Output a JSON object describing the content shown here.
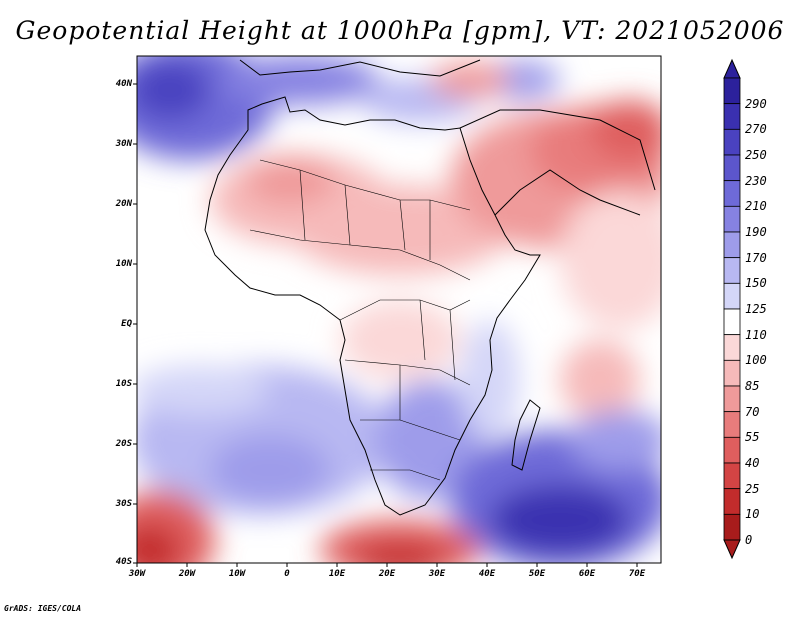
{
  "title": "Geopotential Height at 1000hPa [gpm], VT: 2021052006",
  "credit": "GrADS: IGES/COLA",
  "map": {
    "projection": "lat-lon",
    "variable": "Geopotential Height at 1000hPa",
    "units": "gpm",
    "valid_time": "2021052006",
    "lat_labels": [
      "40N",
      "30N",
      "20N",
      "10N",
      "EQ",
      "10S",
      "20S",
      "30S",
      "40S"
    ],
    "lon_labels": [
      "30W",
      "20W",
      "10W",
      "0",
      "10E",
      "20E",
      "30E",
      "40E",
      "50E",
      "60E",
      "70E"
    ],
    "lon_range": [
      -30,
      75
    ],
    "lat_range": [
      -40,
      45
    ],
    "features": {
      "high_pressure": [
        "South Atlantic (around 25S, 10W)",
        "Indian Ocean south of Madagascar (around 35S, 55E)",
        "North Atlantic near Azores (around 38N, 25W)"
      ],
      "low_pressure": [
        "Arabian Peninsula / Iran region",
        "Sahara / West Africa",
        "South-west off South Africa (around 38S, 28W)",
        "South of South Africa (around 40S, 20E)"
      ]
    }
  },
  "colorbar": {
    "levels": [
      "290",
      "270",
      "250",
      "230",
      "210",
      "190",
      "170",
      "150",
      "125",
      "110",
      "100",
      "85",
      "70",
      "55",
      "40",
      "25",
      "10",
      "0"
    ],
    "colors": [
      "#2c219c",
      "#3a30b0",
      "#4a42c0",
      "#5c56cc",
      "#6e6ad8",
      "#8682e2",
      "#9e9cea",
      "#b8b8f2",
      "#d4d6f8",
      "#ffffff",
      "#fbd8d8",
      "#f6baba",
      "#ef9a9a",
      "#e87c7c",
      "#df5e5e",
      "#d34444",
      "#c22c2c",
      "#a81c1c"
    ]
  }
}
